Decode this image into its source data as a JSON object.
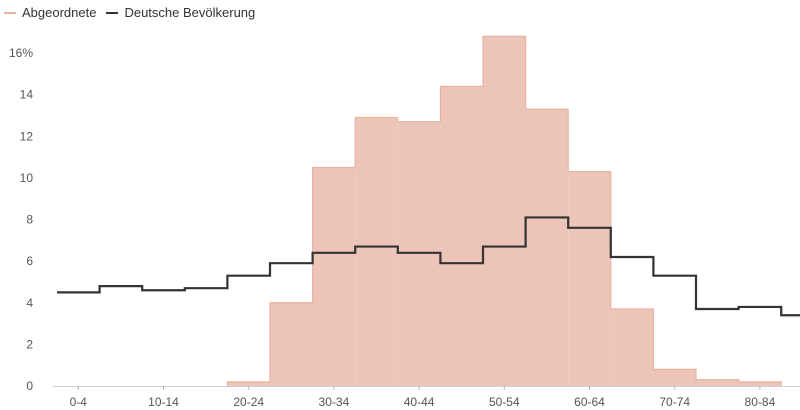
{
  "chart_data": {
    "type": "area",
    "title": "",
    "xlabel": "",
    "ylabel": "",
    "categories": [
      "0-4",
      "5-9",
      "10-14",
      "15-19",
      "20-24",
      "25-29",
      "30-34",
      "35-39",
      "40-44",
      "45-49",
      "50-54",
      "55-59",
      "60-64",
      "65-69",
      "70-74",
      "75-79",
      "80-84",
      "85-89"
    ],
    "x_tick_labels": [
      "0-4",
      "10-14",
      "20-24",
      "30-34",
      "40-44",
      "50-54",
      "60-64",
      "70-74",
      "80-84"
    ],
    "ylim": [
      0,
      16
    ],
    "y_ticks": [
      0,
      2,
      4,
      6,
      8,
      10,
      12,
      14,
      16
    ],
    "y_tick_labels": [
      "0",
      "2",
      "4",
      "6",
      "8",
      "10",
      "12",
      "14",
      "16%"
    ],
    "grid": false,
    "legend_position": "top-left",
    "series": [
      {
        "name": "Abgeordnete",
        "style": "step-area",
        "color": "#e8b5a2",
        "fill": "#ecc5b8",
        "values": [
          0,
          0,
          0,
          0,
          0.2,
          4.0,
          10.5,
          12.9,
          12.7,
          14.4,
          16.8,
          13.3,
          10.3,
          3.7,
          0.8,
          0.3,
          0.2,
          0
        ]
      },
      {
        "name": "Deutsche Bevölkerung",
        "style": "step-line",
        "color": "#333333",
        "values": [
          4.5,
          4.8,
          4.6,
          4.7,
          5.3,
          5.9,
          6.4,
          6.7,
          6.4,
          5.9,
          6.7,
          8.1,
          7.6,
          6.2,
          5.3,
          3.7,
          3.8,
          3.4
        ]
      }
    ]
  }
}
